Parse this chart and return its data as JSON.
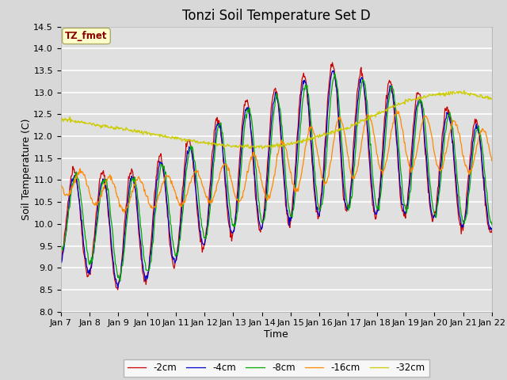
{
  "title": "Tonzi Soil Temperature Set D",
  "xlabel": "Time",
  "ylabel": "Soil Temperature (C)",
  "ylim": [
    8.0,
    14.5
  ],
  "legend_label": "TZ_fmet",
  "series_labels": [
    "-2cm",
    "-4cm",
    "-8cm",
    "-16cm",
    "-32cm"
  ],
  "series_colors": [
    "#cc0000",
    "#0000cc",
    "#00aa00",
    "#ff8800",
    "#cccc00"
  ],
  "n_days": 15,
  "tick_labels": [
    "Jan 7",
    "Jan 8",
    "Jan 9",
    "Jan 10",
    "Jan 11",
    "Jan 12",
    "Jan 13",
    "Jan 14",
    "Jan 15",
    "Jan 16",
    "Jan 17",
    "Jan 18",
    "Jan 19",
    "Jan 20",
    "Jan 21",
    "Jan 22"
  ],
  "background_color": "#e0e0e0",
  "grid_color": "#ffffff",
  "title_fontsize": 12,
  "axis_fontsize": 9,
  "tick_fontsize": 8
}
